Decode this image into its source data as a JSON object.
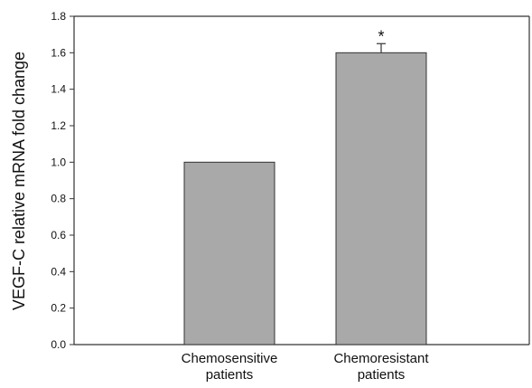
{
  "chart_data": {
    "type": "bar",
    "categories": [
      "Chemosensitive patients",
      "Chemoresistant patients"
    ],
    "category_lines": [
      [
        "Chemosensitive",
        "patients"
      ],
      [
        "Chemoresistant",
        "patients"
      ]
    ],
    "values": [
      1.0,
      1.6
    ],
    "error_bars": [
      null,
      0.05
    ],
    "annotations": [
      "",
      "*"
    ],
    "title": "",
    "xlabel": "",
    "ylabel": "VEGF-C relative mRNA fold change",
    "ylim": [
      0,
      1.8
    ],
    "yticks": [
      "0.0",
      "0.2",
      "0.4",
      "0.6",
      "0.8",
      "1.0",
      "1.2",
      "1.4",
      "1.6",
      "1.8"
    ],
    "grid": false,
    "legend": "none",
    "colors": {
      "bar": "#a9a9a9",
      "bar_edge": "#333333",
      "axis": "#333333"
    }
  }
}
